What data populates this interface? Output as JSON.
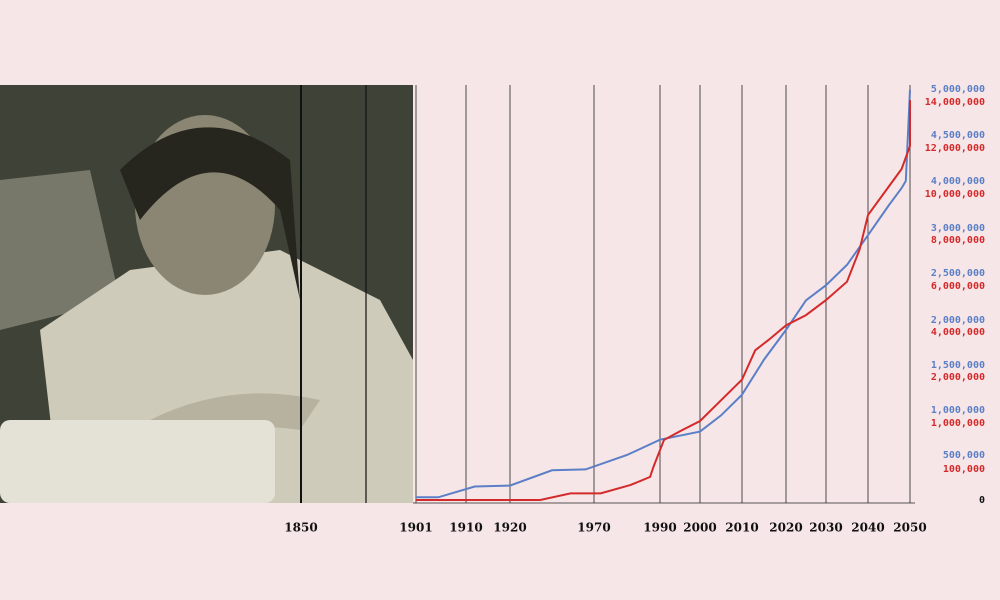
{
  "chart_data": {
    "type": "line",
    "xlim": [
      1850,
      2050
    ],
    "xticks": [
      1850,
      1901,
      1910,
      1920,
      1970,
      1990,
      2000,
      2010,
      2020,
      2030,
      2040,
      2050
    ],
    "ylim": [
      0,
      5000000
    ],
    "yticks": [
      0,
      {
        "value": 500000,
        "label": "500,000"
      },
      {
        "value": 1000000,
        "label": "1,000,000"
      },
      {
        "value": 1500000,
        "label": "1,500,000"
      },
      {
        "value": 2000000,
        "label": "2,000,000"
      },
      {
        "value": 2500000,
        "label": "2,500,000"
      },
      {
        "value": 3000000,
        "label": "3,000,000"
      },
      {
        "value": 4000000,
        "label": "4,000,000"
      },
      {
        "value": 4500000,
        "label": "4,500,000"
      },
      {
        "value": 5000000,
        "label": "5,000,000"
      }
    ],
    "y2lim": [
      0,
      14000000
    ],
    "y2ticks": [
      {
        "value": 100000,
        "label": "100,000"
      },
      {
        "value": 1000000,
        "label": "1,000,000"
      },
      {
        "value": 2000000,
        "label": "2,000,000"
      },
      {
        "value": 4000000,
        "label": "4,000,000"
      },
      {
        "value": 6000000,
        "label": "6,000,000"
      },
      {
        "value": 8000000,
        "label": "8,000,000"
      },
      {
        "value": 10000000,
        "label": "10,000,000"
      },
      {
        "value": 12000000,
        "label": "12,000,000"
      },
      {
        "value": 14000000,
        "label": "14,000,000"
      }
    ],
    "grid": true,
    "series": [
      {
        "color": "#5b7fc7",
        "x": [
          1901,
          1905,
          1912,
          1920,
          1945,
          1965,
          1980,
          1990,
          2000,
          2005,
          2010,
          2015,
          2020,
          2025,
          2030,
          2035,
          2040,
          2045,
          2048,
          2049,
          2050
        ],
        "values": [
          30000,
          30000,
          150000,
          160000,
          330000,
          340000,
          500000,
          670000,
          760000,
          940000,
          1170000,
          1560000,
          1890000,
          2210000,
          2370000,
          2590000,
          2920000,
          3490000,
          3850000,
          4000000,
          4990000
        ]
      },
      {
        "color": "#d42a2a",
        "axis": "y2",
        "x": [
          1901,
          1938,
          1956,
          1972,
          1981,
          1987,
          1988,
          1991,
          1995,
          2000,
          2005,
          2010,
          2013,
          2016,
          2020,
          2025,
          2030,
          2035,
          2038,
          2040,
          2044,
          2048,
          2050,
          2050
        ],
        "values": [
          0,
          0,
          20000,
          20000,
          45000,
          70000,
          100000,
          630000,
          800000,
          1000000,
          1450000,
          1900000,
          3100000,
          3550000,
          4200000,
          4650000,
          5300000,
          6100000,
          7500000,
          9000000,
          10000000,
          11000000,
          12000000,
          14000000
        ]
      }
    ]
  }
}
